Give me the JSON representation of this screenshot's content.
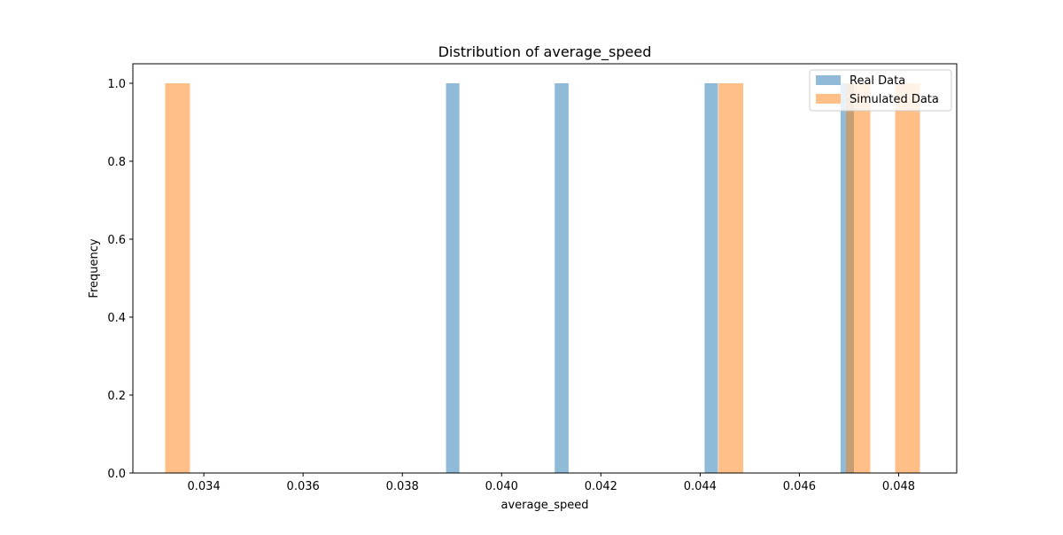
{
  "chart_data": {
    "type": "bar",
    "title": "Distribution of average_speed",
    "xlabel": "average_speed",
    "ylabel": "Frequency",
    "xlim": [
      0.03257,
      0.04917
    ],
    "ylim": [
      0,
      1.05
    ],
    "x_ticks": [
      "0.034",
      "0.036",
      "0.038",
      "0.040",
      "0.042",
      "0.044",
      "0.046",
      "0.048"
    ],
    "y_ticks": [
      "0.0",
      "0.2",
      "0.4",
      "0.6",
      "0.8",
      "1.0"
    ],
    "grid": false,
    "legend_position": "top-right",
    "series": [
      {
        "name": "Real Data",
        "color": "#1f77b4",
        "opacity": 0.5,
        "bins": [
          {
            "x0": 0.03888,
            "x1": 0.03915,
            "count": 1
          },
          {
            "x0": 0.04107,
            "x1": 0.04135,
            "count": 1
          },
          {
            "x0": 0.04409,
            "x1": 0.04436,
            "count": 1
          },
          {
            "x0": 0.04683,
            "x1": 0.0471,
            "count": 1
          }
        ]
      },
      {
        "name": "Simulated Data",
        "color": "#ff7f0e",
        "opacity": 0.5,
        "bins": [
          {
            "x0": 0.03322,
            "x1": 0.03372,
            "count": 1
          },
          {
            "x0": 0.04437,
            "x1": 0.04487,
            "count": 1
          },
          {
            "x0": 0.04694,
            "x1": 0.04743,
            "count": 1
          },
          {
            "x0": 0.04793,
            "x1": 0.04843,
            "count": 1
          }
        ]
      }
    ]
  }
}
